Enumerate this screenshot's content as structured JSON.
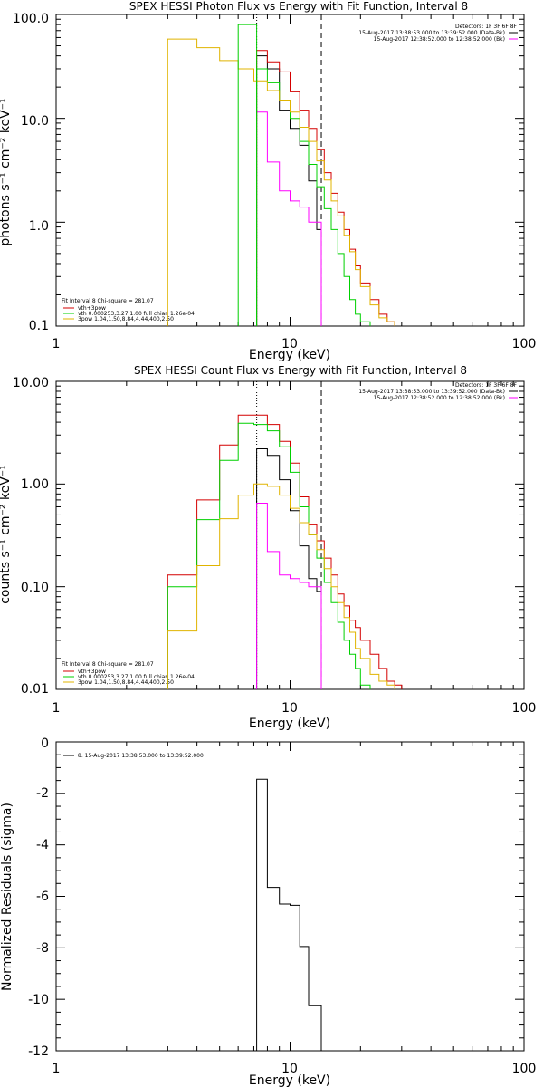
{
  "chart_data": [
    {
      "type": "line",
      "title": "SPEX HESSI Photon Flux vs Energy with Fit Function, Interval 8",
      "xlabel": "Energy (keV)",
      "ylabel": "photons s⁻¹ cm⁻² keV⁻¹",
      "xscale": "log",
      "yscale": "log",
      "xlim": [
        1,
        100
      ],
      "ylim": [
        0.1,
        100
      ],
      "xticks": [
        "1",
        "10",
        "100"
      ],
      "yticks": [
        "0.1",
        "1.0",
        "10.0",
        "100.0"
      ],
      "annotations": {
        "detectors": "Detectors: 1F 3F 6F 8F",
        "data_interval": "15-Aug-2017 13:38:53.000 to 13:39:52.000 (Data-Bk)",
        "bk_interval": "15-Aug-2017 12:38:52.000 to 12:38:52.000 (Bk)",
        "fit_info": "Fit Interval 8   Chi-square = 281.07"
      },
      "legend": [
        "vth+3pow",
        "vth 0.000253,3.27,1.00   full chian 1.26e-04",
        "3pow 1.04,1.50,8.84,4.44,400,2.50"
      ],
      "vlines": [
        7.2,
        13.6
      ],
      "series": [
        {
          "color": "#000000",
          "edges": [
            7.2,
            8.0,
            9.0,
            10.0,
            11.0,
            12.0,
            13.0,
            13.6
          ],
          "values": [
            40,
            30,
            12,
            8,
            5.5,
            2.5,
            0.85
          ]
        },
        {
          "color": "#ff00ff",
          "edges": [
            7.2,
            8.0,
            9.0,
            10.0,
            11.0,
            12.0,
            13.6
          ],
          "values": [
            11.5,
            3.8,
            2.0,
            1.6,
            1.4,
            1.0
          ]
        },
        {
          "color": "#d40000",
          "edges": [
            7.2,
            8.0,
            9.0,
            10.0,
            11.0,
            12.0,
            13.0,
            14.0,
            15.0,
            16.0,
            17.0,
            18.0,
            19.0,
            20.0,
            22.0,
            24.0,
            26.0,
            28.0
          ],
          "values": [
            45,
            35,
            28,
            18,
            12,
            8,
            5,
            3,
            1.9,
            1.25,
            0.85,
            0.55,
            0.38,
            0.26,
            0.18,
            0.13,
            0.11
          ]
        },
        {
          "color": "#00d000",
          "edges": [
            7.2,
            8.0,
            9.0,
            10.0,
            11.0,
            12.0,
            13.0,
            14.0,
            15.0,
            16.0,
            17.0,
            18.0,
            19.0,
            20.0,
            22.0
          ],
          "values": [
            30,
            22,
            15,
            10,
            6,
            3.6,
            2.2,
            1.35,
            0.85,
            0.5,
            0.3,
            0.18,
            0.13,
            0.11
          ]
        },
        {
          "color": "#e0b400",
          "edges": [
            3.0,
            4.0,
            5.0,
            6.0,
            7.0,
            8.0,
            9.0,
            10.0,
            11.0,
            12.0,
            13.0,
            14.0,
            15.0,
            16.0,
            17.0,
            18.0,
            19.0,
            20.0,
            22.0,
            24.0,
            26.0,
            28.0
          ],
          "values": [
            58,
            48,
            36,
            30,
            23,
            18.5,
            15,
            11.5,
            8.2,
            6,
            3.9,
            2.55,
            1.6,
            1.15,
            0.75,
            0.52,
            0.35,
            0.24,
            0.16,
            0.12,
            0.11
          ]
        },
        {
          "color": "#00d000",
          "edges": [
            6.0,
            7.2
          ],
          "values": [
            80
          ]
        }
      ]
    },
    {
      "type": "line",
      "title": "SPEX HESSI Count Flux vs Energy with Fit Function, Interval 8",
      "xlabel": "Energy (keV)",
      "ylabel": "counts s⁻¹ cm⁻² keV⁻¹",
      "xscale": "log",
      "yscale": "log",
      "xlim": [
        1,
        100
      ],
      "ylim": [
        0.01,
        10
      ],
      "xticks": [
        "1",
        "10",
        "100"
      ],
      "yticks": [
        "0.01",
        "0.10",
        "1.00",
        "10.00"
      ],
      "annotations": {
        "detectors": "Detectors: 1F 3F 6F 8F",
        "data_interval": "15-Aug-2017 13:38:53.000 to 13:39:52.000 (Data-Bk)",
        "bk_interval": "15-Aug-2017 12:38:52.000 to 12:38:52.000 (Bk)",
        "fit_info": "Fit Interval 8   Chi-square = 281.07"
      },
      "legend": [
        "vth+3pow",
        "vth 0.000253,3.27,1.00   full chian 1.26e-04",
        "3pow 1.04,1.50,8.84,4.44,400,2.50"
      ],
      "vlines": [
        7.2,
        13.6
      ],
      "series": [
        {
          "color": "#000000",
          "edges": [
            7.2,
            8.0,
            9.0,
            10.0,
            11.0,
            12.0,
            13.0,
            13.6
          ],
          "values": [
            2.2,
            1.9,
            1.1,
            0.55,
            0.25,
            0.12,
            0.09
          ]
        },
        {
          "color": "#ff00ff",
          "edges": [
            7.2,
            8.0,
            9.0,
            10.0,
            11.0,
            12.0,
            13.6
          ],
          "values": [
            0.65,
            0.22,
            0.13,
            0.12,
            0.11,
            0.1
          ]
        },
        {
          "color": "#d40000",
          "edges": [
            3.0,
            4.0,
            5.0,
            6.0,
            7.0,
            8.0,
            9.0,
            10.0,
            11.0,
            12.0,
            13.0,
            14.0,
            15.0,
            16.0,
            17.0,
            18.0,
            19.0,
            20.0,
            22.0,
            24.0,
            26.0,
            28.0,
            30.0
          ],
          "values": [
            0.13,
            0.7,
            2.4,
            4.7,
            4.7,
            3.8,
            2.6,
            1.6,
            0.75,
            0.4,
            0.28,
            0.19,
            0.13,
            0.085,
            0.065,
            0.047,
            0.04,
            0.03,
            0.022,
            0.016,
            0.012,
            0.011
          ]
        },
        {
          "color": "#00d000",
          "edges": [
            3.0,
            4.0,
            5.0,
            6.0,
            7.0,
            8.0,
            9.0,
            10.0,
            11.0,
            12.0,
            13.0,
            14.0,
            15.0,
            16.0,
            17.0,
            18.0,
            19.0,
            20.0,
            22.0
          ],
          "values": [
            0.1,
            0.45,
            1.7,
            3.9,
            3.8,
            3.3,
            2.3,
            1.3,
            0.6,
            0.32,
            0.19,
            0.11,
            0.07,
            0.045,
            0.03,
            0.022,
            0.016,
            0.011
          ]
        },
        {
          "color": "#e0b400",
          "edges": [
            3.0,
            4.0,
            5.0,
            6.0,
            7.0,
            8.0,
            9.0,
            10.0,
            11.0,
            12.0,
            13.0,
            14.0,
            15.0,
            16.0,
            17.0,
            18.0,
            19.0,
            20.0,
            22.0,
            24.0,
            26.0,
            28.0
          ],
          "values": [
            0.037,
            0.16,
            0.46,
            0.78,
            1.0,
            0.95,
            0.78,
            0.58,
            0.42,
            0.32,
            0.23,
            0.15,
            0.1,
            0.07,
            0.05,
            0.036,
            0.025,
            0.02,
            0.014,
            0.012,
            0.011
          ]
        }
      ]
    },
    {
      "type": "line",
      "xlabel": "Energy (keV)",
      "ylabel": "Normalized Residuals (sigma)",
      "xscale": "log",
      "xlim": [
        1,
        100
      ],
      "ylim": [
        -12,
        0
      ],
      "xticks": [
        "1",
        "10",
        "100"
      ],
      "yticks": [
        "-12",
        "-10",
        "-8",
        "-6",
        "-4",
        "-2",
        "0"
      ],
      "legend": [
        "8. 15-Aug-2017 13:38:53.000 to 13:39:52.000"
      ],
      "series": [
        {
          "color": "#000000",
          "edges": [
            7.2,
            8.0,
            9.0,
            10.0,
            11.0,
            12.0,
            13.0,
            13.6
          ],
          "values": [
            -1.45,
            -5.65,
            -6.3,
            -6.35,
            -7.95,
            -10.25,
            -10.25
          ]
        }
      ]
    }
  ]
}
